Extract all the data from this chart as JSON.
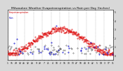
{
  "title": "Milwaukee Weather Evapotranspiration vs Rain per Day (Inches)",
  "title_fontsize": 3.2,
  "background_color": "#d8d8d8",
  "plot_bg_color": "#ffffff",
  "et_color": "#dd0000",
  "rain_color": "#0000cc",
  "black_color": "#111111",
  "grid_color": "#999999",
  "legend_et_color": "#cc0000",
  "legend_rain_color": "#0000bb",
  "ylim": [
    -0.05,
    0.52
  ],
  "ytick_vals": [
    0.0,
    0.1,
    0.2,
    0.3,
    0.4,
    0.5
  ],
  "ytick_labels": [
    "0",
    ".1",
    ".2",
    ".3",
    ".4",
    ".5"
  ],
  "num_days": 365,
  "et_min": 0.02,
  "et_max": 0.3,
  "month_starts": [
    0,
    31,
    59,
    90,
    120,
    151,
    181,
    212,
    243,
    273,
    304,
    334
  ],
  "xtick_step": 14,
  "markersize_et": 0.7,
  "markersize_rain": 0.8,
  "markersize_black": 0.5,
  "legend_fontsize": 2.2,
  "tick_fontsize": 2.2,
  "grid_linewidth": 0.35,
  "spine_linewidth": 0.4
}
